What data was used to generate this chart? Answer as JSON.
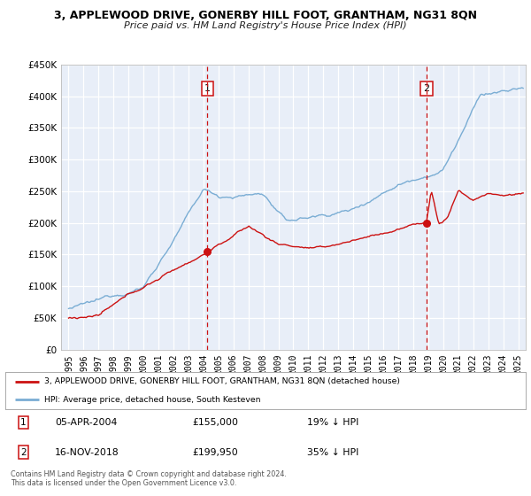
{
  "title": "3, APPLEWOOD DRIVE, GONERBY HILL FOOT, GRANTHAM, NG31 8QN",
  "subtitle": "Price paid vs. HM Land Registry's House Price Index (HPI)",
  "background_color": "#ffffff",
  "plot_bg_color": "#e8eef8",
  "grid_color": "#ffffff",
  "hpi_color": "#7aadd4",
  "price_color": "#cc1111",
  "marker_color": "#cc1111",
  "sale1_date_num": 2004.27,
  "sale1_price": 155000,
  "sale2_date_num": 2018.88,
  "sale2_price": 199950,
  "ylim": [
    0,
    450000
  ],
  "xlim_start": 1994.5,
  "xlim_end": 2025.5,
  "yticks": [
    0,
    50000,
    100000,
    150000,
    200000,
    250000,
    300000,
    350000,
    400000,
    450000
  ],
  "legend_line1": "3, APPLEWOOD DRIVE, GONERBY HILL FOOT, GRANTHAM, NG31 8QN (detached house)",
  "legend_line2": "HPI: Average price, detached house, South Kesteven",
  "note1_label": "1",
  "note1_date": "05-APR-2004",
  "note1_price": "£155,000",
  "note1_hpi": "19% ↓ HPI",
  "note2_label": "2",
  "note2_date": "16-NOV-2018",
  "note2_price": "£199,950",
  "note2_hpi": "35% ↓ HPI",
  "footer": "Contains HM Land Registry data © Crown copyright and database right 2024.\nThis data is licensed under the Open Government Licence v3.0."
}
